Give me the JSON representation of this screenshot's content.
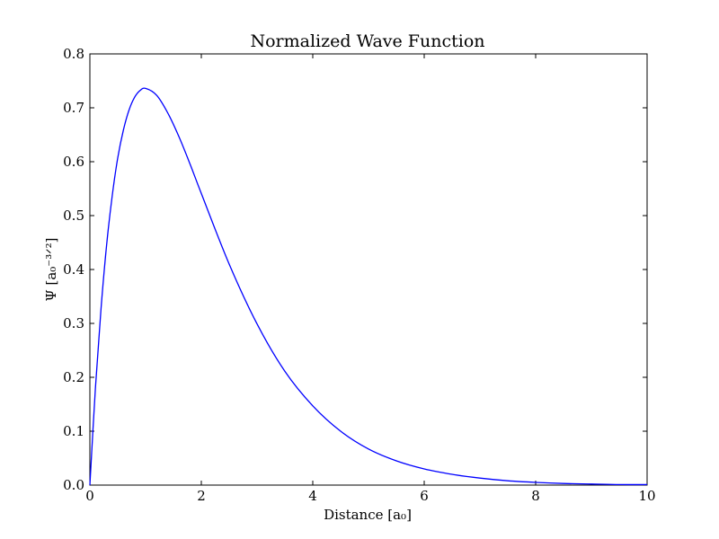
{
  "chart_data": {
    "type": "line",
    "title": "Normalized Wave Function",
    "xlabel": "Distance [a₀]",
    "ylabel": "Ψ [a₀⁻³ᐟ²]",
    "xlim": [
      0,
      10
    ],
    "ylim": [
      0,
      0.8
    ],
    "xticks": [
      "0",
      "2",
      "4",
      "6",
      "8",
      "10"
    ],
    "yticks": [
      "0.0",
      "0.1",
      "0.2",
      "0.3",
      "0.4",
      "0.5",
      "0.6",
      "0.7",
      "0.8"
    ],
    "grid": false,
    "series": [
      {
        "color": "#0000ff",
        "x": [
          0,
          0.1,
          0.2,
          0.3,
          0.4,
          0.5,
          0.6,
          0.7,
          0.8,
          0.9,
          1.0,
          1.2,
          1.4,
          1.6,
          1.8,
          2.0,
          2.5,
          3.0,
          3.5,
          4.0,
          4.5,
          5.0,
          5.5,
          6.0,
          6.5,
          7.0,
          7.5,
          8.0,
          8.5,
          9.0,
          9.5,
          10.0
        ],
        "values": [
          0.0,
          0.181,
          0.327,
          0.445,
          0.536,
          0.607,
          0.658,
          0.695,
          0.719,
          0.732,
          0.736,
          0.723,
          0.69,
          0.646,
          0.595,
          0.541,
          0.41,
          0.299,
          0.211,
          0.147,
          0.1,
          0.067,
          0.045,
          0.03,
          0.02,
          0.013,
          0.008,
          0.005,
          0.003,
          0.002,
          0.001,
          0.001
        ]
      }
    ]
  }
}
